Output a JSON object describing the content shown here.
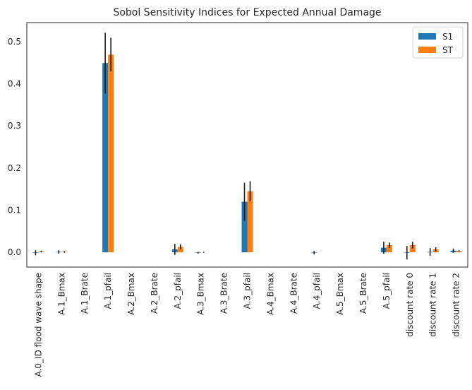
{
  "chart_data": {
    "type": "bar",
    "title": "Sobol Sensitivity Indices for Expected Annual Damage",
    "xlabel": "",
    "ylabel": "",
    "ylim": [
      -0.035,
      0.545
    ],
    "yticks": [
      0.0,
      0.1,
      0.2,
      0.3,
      0.4,
      0.5
    ],
    "ytick_labels": [
      "0.0",
      "0.1",
      "0.2",
      "0.3",
      "0.4",
      "0.5"
    ],
    "grid": false,
    "legend_position": "top-right",
    "categories": [
      "A.0_ID flood wave shape",
      "A.1_Bmax",
      "A.1_Brate",
      "A.1_pfail",
      "A.2_Bmax",
      "A.2_Brate",
      "A.2_pfail",
      "A.3_Bmax",
      "A.3_Brate",
      "A.3_pfail",
      "A.4_Bmax",
      "A.4_Brate",
      "A.4_pfail",
      "A.5_Bmax",
      "A.5_Brate",
      "A.5_pfail",
      "discount rate 0",
      "discount rate 1",
      "discount rate 2"
    ],
    "series": [
      {
        "name": "S1",
        "color": "#1f77b4",
        "values": [
          -0.001,
          0.001,
          0.0,
          0.449,
          0.0,
          0.0,
          0.007,
          -0.001,
          0.0,
          0.12,
          0.0,
          0.0,
          -0.001,
          0.0,
          0.0,
          0.011,
          -0.001,
          0.001,
          0.004
        ],
        "errors": [
          0.006,
          0.004,
          0.0,
          0.072,
          0.0,
          0.0,
          0.013,
          0.002,
          0.0,
          0.045,
          0.0,
          0.0,
          0.004,
          0.0,
          0.0,
          0.014,
          0.016,
          0.009,
          0.005
        ]
      },
      {
        "name": "ST",
        "color": "#ff7f0e",
        "values": [
          0.002,
          0.001,
          0.0,
          0.469,
          0.0,
          0.0,
          0.013,
          0.0,
          0.0,
          0.145,
          0.0,
          0.0,
          0.0,
          0.0,
          0.0,
          0.017,
          0.017,
          0.007,
          0.003
        ],
        "errors": [
          0.002,
          0.002,
          0.0,
          0.04,
          0.0,
          0.0,
          0.006,
          0.001,
          0.0,
          0.024,
          0.0,
          0.0,
          0.0,
          0.0,
          0.0,
          0.006,
          0.008,
          0.005,
          0.002
        ]
      }
    ]
  }
}
